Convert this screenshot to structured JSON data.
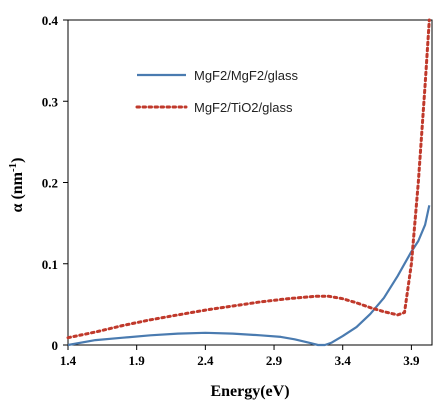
{
  "chart_data": {
    "type": "line",
    "xlabel": "Energy(eV)",
    "ylabel_main": "α (nm",
    "ylabel_sup": "-1",
    "ylabel_end": ")",
    "xlim": [
      1.4,
      4.05
    ],
    "ylim": [
      0,
      0.4
    ],
    "xticks": [
      1.4,
      1.9,
      2.4,
      2.9,
      3.4,
      3.9
    ],
    "xtick_labels": [
      "1.4",
      "1.9",
      "2.4",
      "2.9",
      "3.4",
      "3.9"
    ],
    "yticks": [
      0,
      0.1,
      0.2,
      0.3,
      0.4
    ],
    "ytick_labels": [
      "0",
      "0.1",
      "0.2",
      "0.3",
      "0.4"
    ],
    "grid": false,
    "legend_position": "upper-left inside plot",
    "series": [
      {
        "name": "MgF2/MgF2/glass",
        "color": "#4a7bb0",
        "style": "solid",
        "x": [
          1.4,
          1.6,
          1.8,
          2.0,
          2.2,
          2.4,
          2.6,
          2.8,
          2.95,
          3.05,
          3.15,
          3.22,
          3.27,
          3.32,
          3.36,
          3.4,
          3.5,
          3.6,
          3.7,
          3.8,
          3.85,
          3.9,
          3.95,
          4.0,
          4.03
        ],
        "y": [
          0.0,
          0.006,
          0.009,
          0.012,
          0.014,
          0.015,
          0.014,
          0.012,
          0.01,
          0.007,
          0.003,
          0.0,
          0.0,
          0.003,
          0.007,
          0.011,
          0.022,
          0.038,
          0.058,
          0.085,
          0.1,
          0.115,
          0.128,
          0.148,
          0.172
        ]
      },
      {
        "name": "MgF2/TiO2/glass",
        "color": "#c0392b",
        "style": "dotted",
        "x": [
          1.4,
          1.6,
          1.8,
          2.0,
          2.2,
          2.4,
          2.6,
          2.8,
          3.0,
          3.2,
          3.3,
          3.4,
          3.5,
          3.6,
          3.7,
          3.75,
          3.8,
          3.85,
          3.9,
          3.95,
          4.0,
          4.03
        ],
        "y": [
          0.009,
          0.016,
          0.024,
          0.031,
          0.037,
          0.043,
          0.048,
          0.053,
          0.057,
          0.06,
          0.06,
          0.057,
          0.052,
          0.046,
          0.041,
          0.039,
          0.037,
          0.04,
          0.1,
          0.2,
          0.32,
          0.4
        ]
      }
    ]
  }
}
